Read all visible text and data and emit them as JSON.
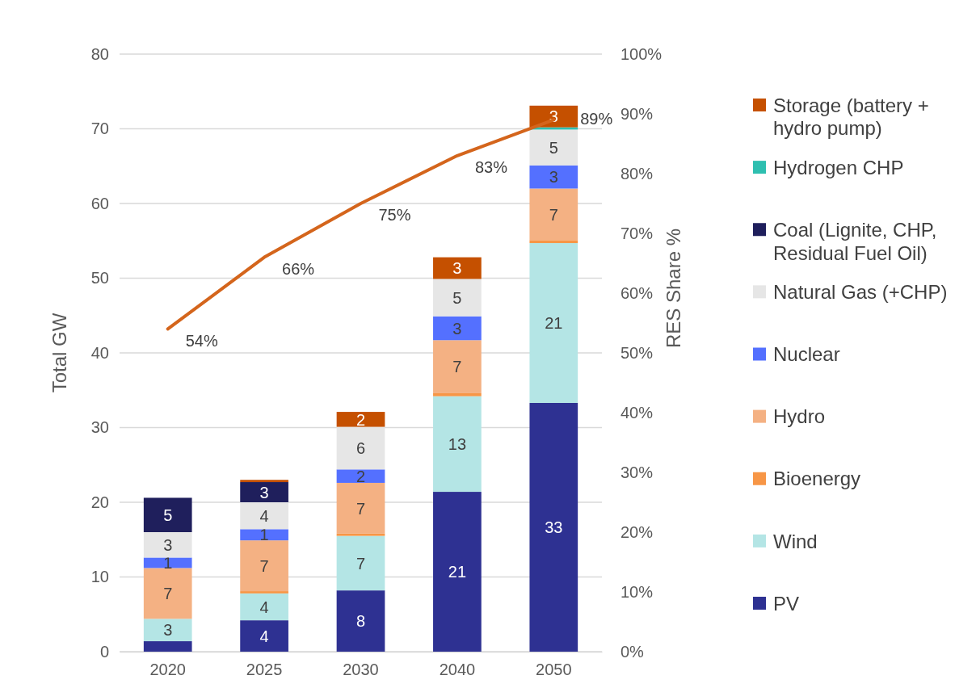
{
  "chart_data": {
    "type": "bar",
    "stacked": true,
    "ylabel": "Total GW",
    "y2label": "RES Share %",
    "categories": [
      "2020",
      "2025",
      "2030",
      "2040",
      "2050"
    ],
    "ylim": [
      0,
      80
    ],
    "yticks": [
      0,
      10,
      20,
      30,
      40,
      50,
      60,
      70,
      80
    ],
    "y2lim": [
      0,
      100
    ],
    "y2ticks": [
      {
        "value": 0,
        "label": "0%"
      },
      {
        "value": 10,
        "label": "10%"
      },
      {
        "value": 20,
        "label": "20%"
      },
      {
        "value": 30,
        "label": "30%"
      },
      {
        "value": 40,
        "label": "40%"
      },
      {
        "value": 50,
        "label": "50%"
      },
      {
        "value": 60,
        "label": "60%"
      },
      {
        "value": 70,
        "label": "70%"
      },
      {
        "value": 80,
        "label": "80%"
      },
      {
        "value": 90,
        "label": "90%"
      },
      {
        "value": 100,
        "label": "100%"
      }
    ],
    "grid": "y",
    "legend": "right",
    "series": [
      {
        "name": "PV",
        "color": "#2e3192",
        "values": [
          1.4,
          4.2,
          8.2,
          21.4,
          33.3
        ],
        "value_labels": [
          null,
          "4",
          "8",
          "21",
          "33"
        ]
      },
      {
        "name": "Wind",
        "color": "#b4e5e5",
        "values": [
          3,
          3.6,
          7.3,
          12.8,
          21.4
        ],
        "value_labels": [
          "3",
          "4",
          "7",
          "13",
          "21"
        ]
      },
      {
        "name": "Bioenergy",
        "color": "#f79646",
        "values": [
          0,
          0.3,
          0.3,
          0.4,
          0.4
        ],
        "value_labels": [
          null,
          null,
          null,
          null,
          null
        ]
      },
      {
        "name": "Hydro",
        "color": "#f4b183",
        "values": [
          6.8,
          6.8,
          6.8,
          7.1,
          6.9
        ],
        "value_labels": [
          "7",
          "7",
          "7",
          "7",
          "7"
        ]
      },
      {
        "name": "Nuclear",
        "color": "#5470ff",
        "values": [
          1.4,
          1.5,
          1.8,
          3.2,
          3.1
        ],
        "value_labels": [
          "1",
          "1",
          "2",
          "3",
          "3"
        ]
      },
      {
        "name": "Natural Gas (+CHP)",
        "color": "#e6e6e6",
        "values": [
          3.4,
          3.6,
          5.7,
          5,
          4.8
        ],
        "value_labels": [
          "3",
          "4",
          "6",
          "5",
          "5"
        ]
      },
      {
        "name": "Coal (Lignite, CHP, Residual Fuel Oil)",
        "color": "#1f1f5c",
        "values": [
          4.6,
          2.7,
          0,
          0,
          0
        ],
        "value_labels": [
          "5",
          "3",
          null,
          null,
          null
        ]
      },
      {
        "name": "Hydrogen CHP",
        "color": "#2ebfb0",
        "values": [
          0,
          0,
          0,
          0,
          0.3
        ],
        "value_labels": [
          null,
          null,
          null,
          null,
          null
        ]
      },
      {
        "name": "Storage (battery + hydro pump)",
        "color": "#c55000",
        "values": [
          0,
          0.3,
          2,
          2.9,
          2.9
        ],
        "value_labels": [
          null,
          null,
          "2",
          "3",
          "3"
        ]
      },
      {
        "type": "line",
        "axis": "y2",
        "color": "#d4651c",
        "values": [
          54,
          66,
          75,
          83,
          89
        ],
        "value_labels": [
          "54%",
          "66%",
          "75%",
          "83%",
          "89%"
        ]
      }
    ]
  }
}
